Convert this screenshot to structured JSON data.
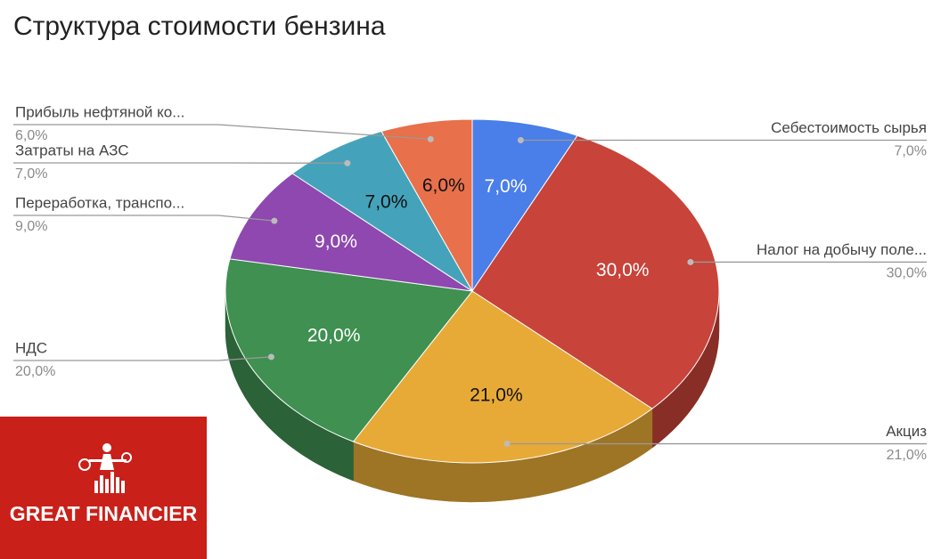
{
  "chart_data": {
    "type": "pie3d",
    "title": "Структура стоимости бензина",
    "categories": [
      "Себестоимость сырья",
      "Налог на добычу поле...",
      "Акциз",
      "НДС",
      "Переработка, транспо...",
      "Затраты на АЗС",
      "Прибыль нефтяной ко..."
    ],
    "values": [
      7,
      30,
      21,
      20,
      9,
      7,
      6
    ],
    "value_labels": [
      "7,0%",
      "30,0%",
      "21,0%",
      "20,0%",
      "9,0%",
      "7,0%",
      "6,0%"
    ],
    "colors": [
      "#4a7ee8",
      "#c8433a",
      "#e8aa37",
      "#3f9051",
      "#8e48b0",
      "#44a3bb",
      "#e8704a"
    ]
  },
  "logo": {
    "text": "GREAT FINANCIER"
  }
}
